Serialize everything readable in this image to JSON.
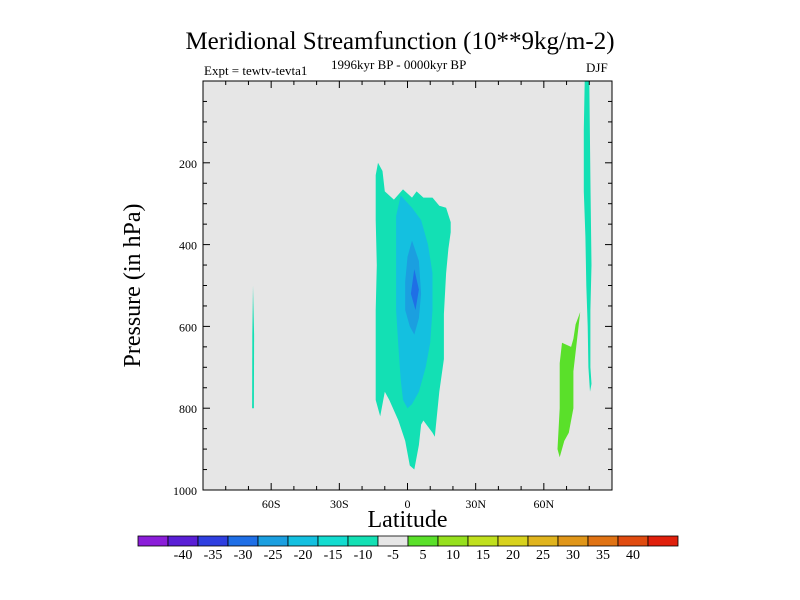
{
  "chart_data": {
    "type": "contour",
    "title": "Meridional Streamfunction (10**9kg/m-2)",
    "left_label": "Expt = tewtv-tevta1",
    "center_label": "1996kyr BP - 0000kyr BP",
    "right_label": "DJF",
    "xlabel": "Latitude",
    "ylabel": "Pressure (in hPa)",
    "xlim": [
      -90,
      90
    ],
    "ylim": [
      1000,
      0
    ],
    "x_ticks": [
      {
        "value": -60,
        "label": "60S"
      },
      {
        "value": -30,
        "label": "30S"
      },
      {
        "value": 0,
        "label": "0"
      },
      {
        "value": 30,
        "label": "30N"
      },
      {
        "value": 60,
        "label": "60N"
      }
    ],
    "y_ticks": [
      {
        "value": 200,
        "label": "200"
      },
      {
        "value": 400,
        "label": "400"
      },
      {
        "value": 600,
        "label": "600"
      },
      {
        "value": 800,
        "label": "800"
      },
      {
        "value": 1000,
        "label": "1000"
      }
    ],
    "background_color": "#e6e6e6",
    "colorbar": {
      "colors": [
        "#8b1ed9",
        "#5a1fd6",
        "#2f3fe0",
        "#1f6fe6",
        "#1b9fe0",
        "#14c0e0",
        "#13dcd0",
        "#13e0b4",
        "#e6e6e6",
        "#5ae02a",
        "#96e01e",
        "#c0e01e",
        "#d8d21e",
        "#e0b41e",
        "#e09619",
        "#e07314",
        "#e04b10",
        "#e0200c"
      ],
      "labels": [
        "-40",
        "-35",
        "-30",
        "-25",
        "-20",
        "-15",
        "-10",
        "-5",
        "5",
        "10",
        "15",
        "20",
        "25",
        "30",
        "35",
        "40"
      ]
    },
    "regions": [
      {
        "level": -5,
        "color": "#13e0b4",
        "points": [
          [
            -68,
            500
          ],
          [
            -67.5,
            620
          ],
          [
            -67.6,
            800
          ],
          [
            -68.4,
            800
          ],
          [
            -68.3,
            620
          ]
        ]
      },
      {
        "level": -5,
        "color": "#13e0b4",
        "points": [
          [
            -13,
            200
          ],
          [
            -11,
            220
          ],
          [
            -10,
            270
          ],
          [
            -6,
            290
          ],
          [
            -2,
            265
          ],
          [
            2,
            285
          ],
          [
            4,
            270
          ],
          [
            7,
            285
          ],
          [
            11,
            285
          ],
          [
            14,
            305
          ],
          [
            17,
            310
          ],
          [
            19,
            345
          ],
          [
            19,
            370
          ],
          [
            18,
            410
          ],
          [
            17,
            470
          ],
          [
            16,
            570
          ],
          [
            16,
            680
          ],
          [
            14,
            760
          ],
          [
            12,
            870
          ],
          [
            11,
            860
          ],
          [
            7,
            830
          ],
          [
            6,
            840
          ],
          [
            5,
            890
          ],
          [
            3,
            950
          ],
          [
            1,
            940
          ],
          [
            -1,
            880
          ],
          [
            -4,
            830
          ],
          [
            -8,
            780
          ],
          [
            -10,
            760
          ],
          [
            -12,
            820
          ],
          [
            -14,
            780
          ],
          [
            -14,
            680
          ],
          [
            -14,
            560
          ],
          [
            -13.5,
            450
          ],
          [
            -14,
            340
          ],
          [
            -14,
            230
          ]
        ]
      },
      {
        "level": -10,
        "color": "#14c0e0",
        "points": [
          [
            -3,
            280
          ],
          [
            2,
            310
          ],
          [
            6,
            340
          ],
          [
            9,
            400
          ],
          [
            11,
            470
          ],
          [
            11,
            560
          ],
          [
            10,
            640
          ],
          [
            8,
            700
          ],
          [
            5,
            760
          ],
          [
            2,
            790
          ],
          [
            0,
            800
          ],
          [
            -2,
            780
          ],
          [
            -3,
            730
          ],
          [
            -4,
            650
          ],
          [
            -5,
            560
          ],
          [
            -5,
            480
          ],
          [
            -5,
            400
          ],
          [
            -5,
            330
          ]
        ]
      },
      {
        "level": -15,
        "color": "#1b9fe0",
        "points": [
          [
            2,
            390
          ],
          [
            5,
            440
          ],
          [
            6,
            520
          ],
          [
            5,
            580
          ],
          [
            3,
            620
          ],
          [
            1,
            600
          ],
          [
            -1,
            560
          ],
          [
            -1,
            490
          ],
          [
            0,
            430
          ]
        ]
      },
      {
        "level": -20,
        "color": "#1f6fe6",
        "points": [
          [
            3,
            460
          ],
          [
            5,
            510
          ],
          [
            3.5,
            560
          ],
          [
            1.5,
            520
          ]
        ]
      },
      {
        "level": 5,
        "color": "#5ae02a",
        "points": [
          [
            76,
            565
          ],
          [
            74,
            595
          ],
          [
            73,
            630
          ],
          [
            72,
            650
          ],
          [
            68,
            640
          ],
          [
            67,
            690
          ],
          [
            67,
            800
          ],
          [
            66,
            900
          ],
          [
            67,
            920
          ],
          [
            69,
            880
          ],
          [
            71,
            860
          ],
          [
            73,
            800
          ],
          [
            73,
            710
          ]
        ]
      },
      {
        "level": -5,
        "color": "#13e0b4",
        "points": [
          [
            78,
            0
          ],
          [
            80,
            0
          ],
          [
            80.6,
            280
          ],
          [
            81,
            450
          ],
          [
            80.5,
            560
          ],
          [
            80.5,
            700
          ],
          [
            81,
            740
          ],
          [
            80.3,
            760
          ],
          [
            79.6,
            700
          ],
          [
            79.3,
            600
          ],
          [
            78.7,
            500
          ],
          [
            78.3,
            380
          ],
          [
            77.6,
            270
          ],
          [
            77.6,
            120
          ]
        ]
      }
    ]
  }
}
